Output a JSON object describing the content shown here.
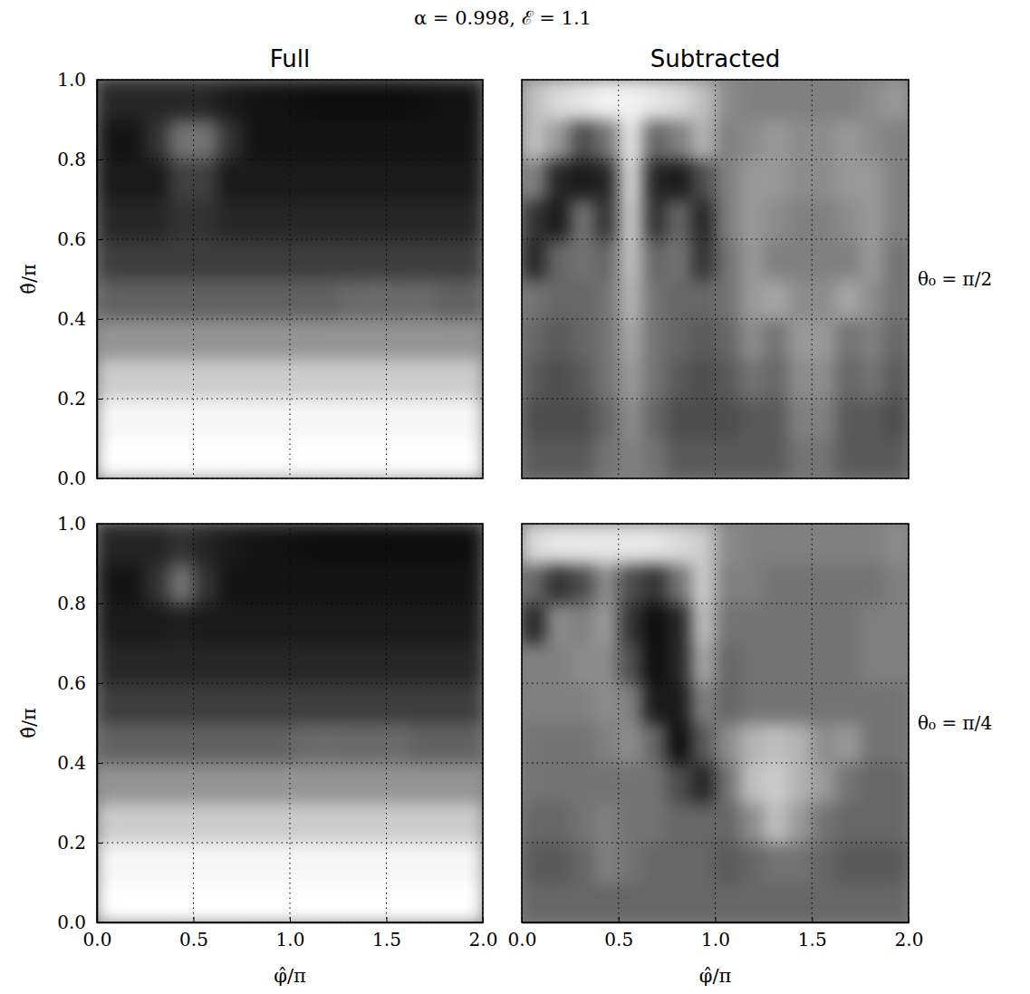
{
  "title": "α = 0.998, ℰ = 1.1",
  "chart_data": [
    {
      "type": "heatmap",
      "title": "Full",
      "ylabel": "θ̂/π",
      "xlim": [
        0,
        2
      ],
      "ylim": [
        0,
        1
      ],
      "xticks": [
        0,
        0.5,
        1,
        1.5,
        2
      ],
      "yticks": [
        {
          "value": 0,
          "label": "0.0"
        },
        0.2,
        0.4,
        0.6,
        0.8,
        {
          "value": 1,
          "label": "1.0"
        }
      ],
      "grid": true,
      "tick_labels": "y",
      "xbins": [
        0,
        0.125,
        0.25,
        0.375,
        0.5,
        0.625,
        0.75,
        0.875,
        1,
        1.125,
        1.25,
        1.375,
        1.5,
        1.625,
        1.75,
        1.875,
        2
      ],
      "ybins": [
        0,
        0.1,
        0.2,
        0.3,
        0.4,
        0.5,
        0.6,
        0.7,
        0.8,
        0.9,
        1
      ],
      "z": [
        [
          1,
          1,
          1,
          1,
          1,
          1,
          1,
          1,
          1,
          1,
          1,
          1,
          1,
          1,
          1,
          1
        ],
        [
          0.97,
          0.97,
          0.97,
          0.97,
          0.97,
          0.97,
          0.97,
          0.97,
          0.97,
          0.97,
          0.97,
          0.97,
          0.97,
          0.97,
          0.97,
          0.97
        ],
        [
          0.8,
          0.8,
          0.8,
          0.8,
          0.8,
          0.8,
          0.8,
          0.8,
          0.8,
          0.8,
          0.8,
          0.8,
          0.8,
          0.8,
          0.8,
          0.8
        ],
        [
          0.58,
          0.58,
          0.58,
          0.58,
          0.58,
          0.58,
          0.58,
          0.58,
          0.58,
          0.58,
          0.58,
          0.58,
          0.58,
          0.58,
          0.58,
          0.58
        ],
        [
          0.38,
          0.38,
          0.38,
          0.38,
          0.38,
          0.38,
          0.38,
          0.38,
          0.38,
          0.38,
          0.41,
          0.42,
          0.41,
          0.42,
          0.38,
          0.38
        ],
        [
          0.24,
          0.24,
          0.24,
          0.24,
          0.24,
          0.24,
          0.24,
          0.24,
          0.24,
          0.24,
          0.24,
          0.24,
          0.24,
          0.24,
          0.24,
          0.24
        ],
        [
          0.15,
          0.15,
          0.15,
          0.2,
          0.2,
          0.15,
          0.15,
          0.15,
          0.15,
          0.15,
          0.15,
          0.15,
          0.15,
          0.15,
          0.15,
          0.15
        ],
        [
          0.1,
          0.1,
          0.1,
          0.25,
          0.25,
          0.1,
          0.1,
          0.1,
          0.1,
          0.1,
          0.1,
          0.1,
          0.1,
          0.1,
          0.1,
          0.1
        ],
        [
          0.08,
          0.08,
          0.2,
          0.45,
          0.45,
          0.2,
          0.08,
          0.08,
          0.08,
          0.08,
          0.08,
          0.08,
          0.08,
          0.08,
          0.08,
          0.08
        ],
        [
          0.15,
          0.15,
          0.15,
          0.15,
          0.15,
          0.1,
          0.08,
          0.07,
          0.06,
          0.05,
          0.05,
          0.05,
          0.05,
          0.06,
          0.07,
          0.08
        ]
      ]
    },
    {
      "type": "heatmap",
      "title": "Subtracted",
      "annotation": "θ₀ = π/2",
      "xlim": [
        0,
        2
      ],
      "ylim": [
        0,
        1
      ],
      "xticks": [
        0,
        0.5,
        1,
        1.5,
        2
      ],
      "yticks": [
        0,
        0.2,
        0.4,
        0.6,
        0.8,
        1
      ],
      "grid": true,
      "tick_labels": false,
      "xbins": [
        0,
        0.125,
        0.25,
        0.375,
        0.5,
        0.625,
        0.75,
        0.875,
        1,
        1.125,
        1.25,
        1.375,
        1.5,
        1.625,
        1.75,
        1.875,
        2
      ],
      "ybins": [
        0,
        0.1,
        0.2,
        0.3,
        0.4,
        0.5,
        0.6,
        0.7,
        0.8,
        0.9,
        1
      ],
      "z": [
        [
          0.35,
          0.35,
          0.35,
          0.45,
          0.5,
          0.45,
          0.35,
          0.35,
          0.35,
          0.35,
          0.35,
          0.45,
          0.45,
          0.35,
          0.35,
          0.35
        ],
        [
          0.3,
          0.3,
          0.3,
          0.4,
          0.55,
          0.4,
          0.3,
          0.3,
          0.3,
          0.35,
          0.35,
          0.5,
          0.5,
          0.35,
          0.35,
          0.3
        ],
        [
          0.35,
          0.3,
          0.35,
          0.45,
          0.6,
          0.45,
          0.35,
          0.3,
          0.35,
          0.45,
          0.4,
          0.55,
          0.55,
          0.4,
          0.45,
          0.35
        ],
        [
          0.4,
          0.35,
          0.4,
          0.45,
          0.65,
          0.45,
          0.4,
          0.35,
          0.4,
          0.55,
          0.45,
          0.6,
          0.6,
          0.45,
          0.5,
          0.4
        ],
        [
          0.45,
          0.4,
          0.4,
          0.45,
          0.7,
          0.45,
          0.4,
          0.4,
          0.45,
          0.6,
          0.65,
          0.55,
          0.55,
          0.65,
          0.55,
          0.45
        ],
        [
          0.15,
          0.4,
          0.45,
          0.4,
          0.75,
          0.4,
          0.45,
          0.2,
          0.45,
          0.6,
          0.5,
          0.5,
          0.5,
          0.5,
          0.6,
          0.45
        ],
        [
          0.2,
          0.1,
          0.45,
          0.2,
          0.8,
          0.2,
          0.4,
          0.15,
          0.5,
          0.6,
          0.55,
          0.5,
          0.5,
          0.55,
          0.6,
          0.5
        ],
        [
          0.5,
          0.15,
          0.1,
          0.15,
          0.85,
          0.15,
          0.1,
          0.3,
          0.5,
          0.6,
          0.6,
          0.55,
          0.55,
          0.6,
          0.6,
          0.5
        ],
        [
          0.75,
          0.6,
          0.3,
          0.45,
          0.9,
          0.4,
          0.5,
          0.7,
          0.5,
          0.55,
          0.6,
          0.55,
          0.55,
          0.6,
          0.55,
          0.5
        ],
        [
          0.75,
          0.85,
          0.9,
          0.95,
          0.95,
          0.9,
          0.85,
          0.75,
          0.55,
          0.5,
          0.5,
          0.5,
          0.5,
          0.5,
          0.55,
          0.6
        ]
      ]
    },
    {
      "type": "heatmap",
      "ylabel": "θ̂/π",
      "xlabel": "φ̂/π",
      "xlim": [
        0,
        2
      ],
      "ylim": [
        0,
        1
      ],
      "xticks": [
        {
          "value": 0,
          "label": "0.0"
        },
        0.5,
        {
          "value": 1,
          "label": "1.0"
        },
        1.5,
        {
          "value": 2,
          "label": "2.0"
        }
      ],
      "yticks": [
        {
          "value": 0,
          "label": "0.0"
        },
        0.2,
        0.4,
        0.6,
        0.8,
        {
          "value": 1,
          "label": "1.0"
        }
      ],
      "grid": true,
      "tick_labels": true,
      "xbins": [
        0,
        0.125,
        0.25,
        0.375,
        0.5,
        0.625,
        0.75,
        0.875,
        1,
        1.125,
        1.25,
        1.375,
        1.5,
        1.625,
        1.75,
        1.875,
        2
      ],
      "ybins": [
        0,
        0.1,
        0.2,
        0.3,
        0.4,
        0.5,
        0.6,
        0.7,
        0.8,
        0.9,
        1
      ],
      "z": [
        [
          1,
          1,
          1,
          1,
          1,
          1,
          1,
          1,
          1,
          1,
          1,
          1,
          1,
          1,
          1,
          1
        ],
        [
          0.97,
          0.97,
          0.97,
          0.97,
          0.97,
          0.97,
          0.97,
          0.97,
          0.97,
          0.97,
          0.97,
          0.97,
          0.97,
          0.97,
          0.97,
          0.97
        ],
        [
          0.8,
          0.8,
          0.8,
          0.8,
          0.8,
          0.8,
          0.8,
          0.8,
          0.8,
          0.8,
          0.8,
          0.8,
          0.8,
          0.8,
          0.8,
          0.8
        ],
        [
          0.58,
          0.58,
          0.58,
          0.58,
          0.58,
          0.58,
          0.58,
          0.58,
          0.58,
          0.58,
          0.58,
          0.58,
          0.58,
          0.58,
          0.58,
          0.58
        ],
        [
          0.38,
          0.38,
          0.38,
          0.38,
          0.38,
          0.38,
          0.38,
          0.38,
          0.41,
          0.42,
          0.41,
          0.41,
          0.42,
          0.38,
          0.38,
          0.38
        ],
        [
          0.24,
          0.24,
          0.24,
          0.24,
          0.24,
          0.24,
          0.24,
          0.24,
          0.24,
          0.24,
          0.24,
          0.24,
          0.24,
          0.24,
          0.24,
          0.24
        ],
        [
          0.15,
          0.15,
          0.15,
          0.15,
          0.15,
          0.15,
          0.15,
          0.15,
          0.15,
          0.15,
          0.15,
          0.15,
          0.15,
          0.15,
          0.15,
          0.15
        ],
        [
          0.1,
          0.1,
          0.1,
          0.12,
          0.1,
          0.1,
          0.1,
          0.1,
          0.1,
          0.1,
          0.1,
          0.1,
          0.1,
          0.1,
          0.1,
          0.1
        ],
        [
          0.08,
          0.08,
          0.2,
          0.45,
          0.2,
          0.08,
          0.08,
          0.08,
          0.08,
          0.08,
          0.08,
          0.08,
          0.08,
          0.08,
          0.08,
          0.08
        ],
        [
          0.14,
          0.14,
          0.14,
          0.2,
          0.14,
          0.1,
          0.08,
          0.07,
          0.06,
          0.05,
          0.05,
          0.05,
          0.05,
          0.05,
          0.05,
          0.06
        ]
      ]
    },
    {
      "type": "heatmap",
      "xlabel": "φ̂/π",
      "annotation": "θ₀ = π/4",
      "xlim": [
        0,
        2
      ],
      "ylim": [
        0,
        1
      ],
      "xticks": [
        {
          "value": 0,
          "label": "0.0"
        },
        0.5,
        {
          "value": 1,
          "label": "1.0"
        },
        1.5,
        {
          "value": 2,
          "label": "2.0"
        }
      ],
      "yticks": [
        0,
        0.2,
        0.4,
        0.6,
        0.8,
        1
      ],
      "grid": true,
      "tick_labels": "x",
      "xbins": [
        0,
        0.125,
        0.25,
        0.375,
        0.5,
        0.625,
        0.75,
        0.875,
        1,
        1.125,
        1.25,
        1.375,
        1.5,
        1.625,
        1.75,
        1.875,
        2
      ],
      "ybins": [
        0,
        0.1,
        0.2,
        0.3,
        0.4,
        0.5,
        0.6,
        0.7,
        0.8,
        0.9,
        1
      ],
      "z": [
        [
          0.4,
          0.4,
          0.4,
          0.4,
          0.4,
          0.4,
          0.4,
          0.4,
          0.4,
          0.4,
          0.4,
          0.4,
          0.4,
          0.4,
          0.4,
          0.4
        ],
        [
          0.35,
          0.35,
          0.4,
          0.5,
          0.45,
          0.4,
          0.4,
          0.4,
          0.35,
          0.4,
          0.45,
          0.45,
          0.4,
          0.35,
          0.35,
          0.35
        ],
        [
          0.4,
          0.4,
          0.45,
          0.5,
          0.45,
          0.45,
          0.4,
          0.4,
          0.4,
          0.55,
          0.75,
          0.6,
          0.45,
          0.4,
          0.4,
          0.4
        ],
        [
          0.45,
          0.45,
          0.45,
          0.45,
          0.45,
          0.45,
          0.3,
          0.15,
          0.45,
          0.75,
          0.8,
          0.7,
          0.6,
          0.45,
          0.4,
          0.4
        ],
        [
          0.45,
          0.45,
          0.45,
          0.5,
          0.55,
          0.4,
          0.05,
          0.35,
          0.55,
          0.7,
          0.75,
          0.7,
          0.55,
          0.6,
          0.45,
          0.45
        ],
        [
          0.5,
          0.5,
          0.5,
          0.55,
          0.5,
          0.1,
          0.1,
          0.5,
          0.4,
          0.45,
          0.45,
          0.45,
          0.45,
          0.45,
          0.45,
          0.45
        ],
        [
          0.5,
          0.5,
          0.55,
          0.55,
          0.3,
          0.05,
          0.15,
          0.65,
          0.4,
          0.45,
          0.45,
          0.45,
          0.45,
          0.45,
          0.5,
          0.5
        ],
        [
          0.15,
          0.55,
          0.5,
          0.6,
          0.2,
          0.05,
          0.15,
          0.75,
          0.45,
          0.45,
          0.45,
          0.45,
          0.45,
          0.45,
          0.5,
          0.5
        ],
        [
          0.4,
          0.2,
          0.3,
          0.55,
          0.3,
          0.2,
          0.45,
          0.8,
          0.5,
          0.5,
          0.45,
          0.45,
          0.45,
          0.45,
          0.45,
          0.5
        ],
        [
          0.85,
          0.9,
          0.9,
          0.9,
          0.9,
          0.9,
          0.85,
          0.8,
          0.55,
          0.5,
          0.5,
          0.5,
          0.5,
          0.5,
          0.5,
          0.55
        ]
      ]
    }
  ]
}
